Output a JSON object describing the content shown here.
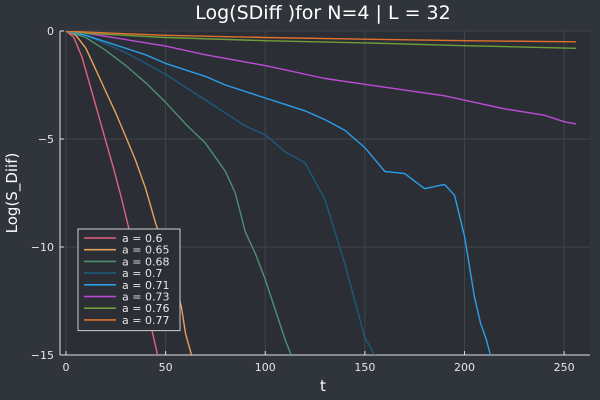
{
  "chart_data": {
    "type": "line",
    "title": "Log(SDiff )for N=4 | L = 32",
    "xlabel": "t",
    "ylabel": "Log(S_Diif)",
    "xlim": [
      -3,
      263
    ],
    "ylim": [
      -15,
      0
    ],
    "xticks": [
      0,
      50,
      100,
      150,
      200,
      250
    ],
    "xtick_labels": [
      "0",
      "50",
      "100",
      "150",
      "200",
      "250"
    ],
    "yticks": [
      0,
      -5,
      -10,
      -15
    ],
    "ytick_labels": [
      "0",
      "−5",
      "−10",
      "−15"
    ],
    "grid": true,
    "legend_position": "bottom-left",
    "colors": {
      "background": "#30343b",
      "plot_area": "#2b2f35",
      "grid": "#40444b",
      "axis": "#e0e0e0"
    },
    "series": [
      {
        "name": "a = 0.6",
        "color": "#e26181",
        "x": [
          0,
          4,
          8,
          12,
          16,
          20,
          24,
          28,
          32,
          36,
          40,
          44,
          46
        ],
        "y": [
          0,
          -0.3,
          -1.2,
          -2.5,
          -3.8,
          -5.1,
          -6.4,
          -7.8,
          -9.3,
          -10.8,
          -12.5,
          -14.2,
          -15
        ]
      },
      {
        "name": "a = 0.65",
        "color": "#e8a15a",
        "x": [
          0,
          5,
          10,
          15,
          20,
          25,
          30,
          35,
          40,
          45,
          50,
          55,
          58,
          60,
          63
        ],
        "y": [
          0,
          -0.2,
          -0.8,
          -1.8,
          -2.8,
          -3.8,
          -4.9,
          -6.0,
          -7.3,
          -8.9,
          -10.2,
          -11.7,
          -12.8,
          -14.0,
          -15
        ]
      },
      {
        "name": "a = 0.68",
        "color": "#4d8f6f",
        "x": [
          0,
          10,
          20,
          30,
          40,
          50,
          60,
          70,
          80,
          85,
          90,
          95,
          100,
          105,
          110,
          113
        ],
        "y": [
          0,
          -0.3,
          -0.9,
          -1.6,
          -2.4,
          -3.3,
          -4.3,
          -5.2,
          -6.5,
          -7.5,
          -9.3,
          -10.3,
          -11.5,
          -12.9,
          -14.3,
          -15
        ]
      },
      {
        "name": "a = 0.7",
        "color": "#1c5b7a",
        "x": [
          0,
          10,
          20,
          30,
          40,
          50,
          60,
          70,
          80,
          90,
          100,
          110,
          120,
          130,
          135,
          140,
          145,
          150,
          155
        ],
        "y": [
          0,
          -0.2,
          -0.6,
          -1.0,
          -1.5,
          -2.0,
          -2.6,
          -3.2,
          -3.8,
          -4.4,
          -4.8,
          -5.6,
          -6.1,
          -7.8,
          -9.3,
          -10.8,
          -12.5,
          -14.2,
          -15
        ]
      },
      {
        "name": "a = 0.71",
        "color": "#2a9ee8",
        "x": [
          0,
          10,
          20,
          30,
          40,
          50,
          60,
          70,
          80,
          90,
          100,
          110,
          120,
          130,
          140,
          150,
          160,
          170,
          180,
          190,
          195,
          200,
          205,
          208,
          211,
          213
        ],
        "y": [
          0,
          -0.2,
          -0.5,
          -0.8,
          -1.1,
          -1.5,
          -1.8,
          -2.1,
          -2.5,
          -2.8,
          -3.1,
          -3.4,
          -3.7,
          -4.1,
          -4.6,
          -5.4,
          -6.5,
          -6.6,
          -7.3,
          -7.1,
          -7.6,
          -9.5,
          -12.3,
          -13.5,
          -14.3,
          -15
        ]
      },
      {
        "name": "a = 0.73",
        "color": "#c04ad8",
        "x": [
          0,
          10,
          30,
          50,
          70,
          100,
          130,
          160,
          190,
          220,
          240,
          250,
          256
        ],
        "y": [
          0,
          -0.1,
          -0.4,
          -0.7,
          -1.1,
          -1.6,
          -2.2,
          -2.6,
          -3.0,
          -3.6,
          -3.9,
          -4.2,
          -4.3
        ]
      },
      {
        "name": "a = 0.76",
        "color": "#6f9e3a",
        "x": [
          0,
          10,
          50,
          100,
          150,
          200,
          256
        ],
        "y": [
          0,
          -0.1,
          -0.3,
          -0.45,
          -0.55,
          -0.68,
          -0.8
        ]
      },
      {
        "name": "a = 0.77",
        "color": "#e0702e",
        "x": [
          0,
          10,
          50,
          100,
          150,
          200,
          256
        ],
        "y": [
          0,
          -0.05,
          -0.2,
          -0.3,
          -0.38,
          -0.45,
          -0.5
        ]
      }
    ]
  }
}
